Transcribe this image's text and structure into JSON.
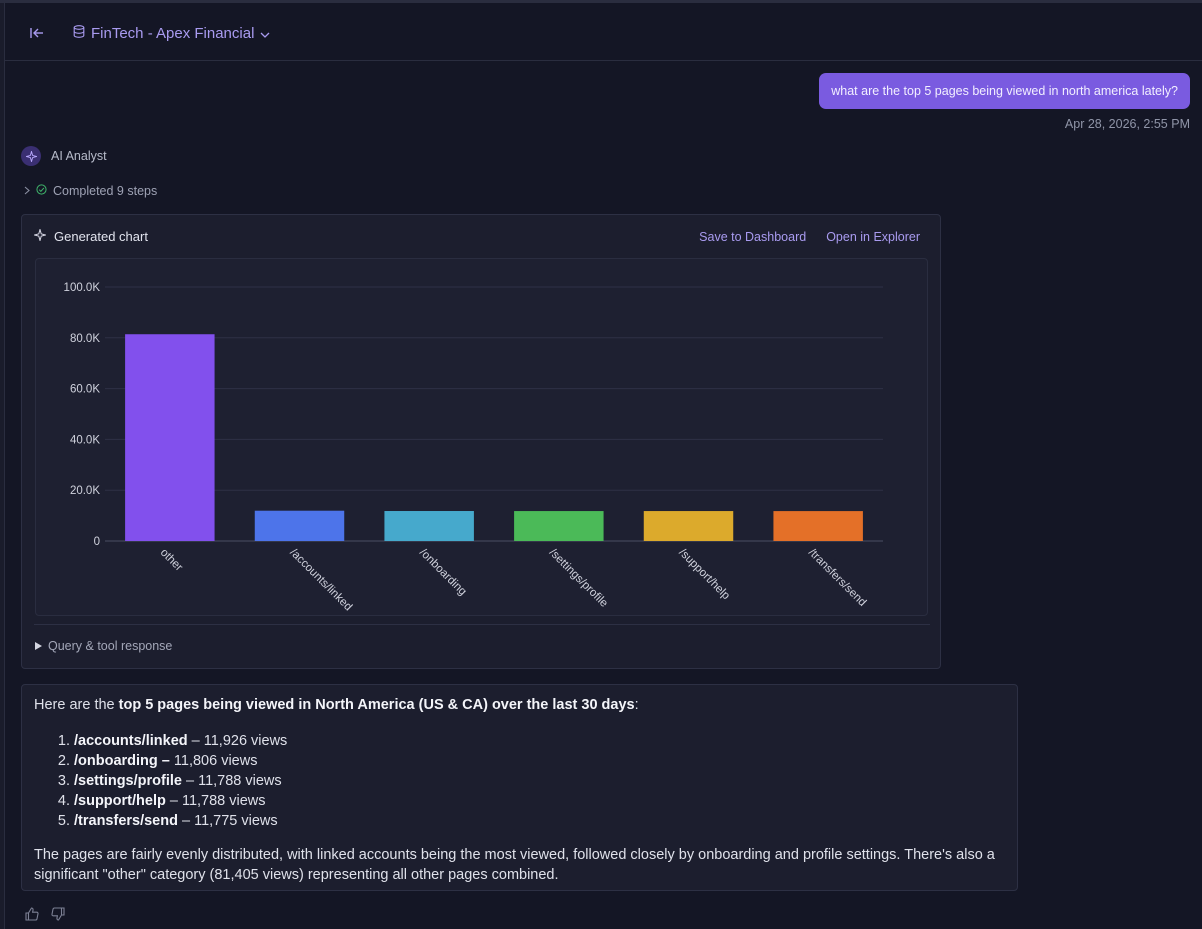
{
  "header": {
    "collapse_icon": "collapse-left-icon",
    "workspace_icon": "database-icon",
    "workspace_name": "FinTech - Apex Financial",
    "dropdown_icon": "chevron-down-icon"
  },
  "conversation": {
    "user_message": "what are the top 5 pages being viewed in north america lately?",
    "timestamp": "Apr 28, 2026, 2:55 PM",
    "assistant_name": "AI Analyst",
    "steps_label": "Completed 9 steps"
  },
  "chart_card": {
    "title": "Generated chart",
    "save_label": "Save to Dashboard",
    "explore_label": "Open in Explorer",
    "query_toggle_label": "Query & tool response"
  },
  "chart_data": {
    "type": "bar",
    "categories": [
      "other",
      "/accounts/linked",
      "/onboarding",
      "/settings/profile",
      "/support/help",
      "/transfers/send"
    ],
    "values": [
      81405,
      11926,
      11806,
      11788,
      11788,
      11775
    ],
    "colors": [
      "#8250ed",
      "#4d74ea",
      "#46a9cc",
      "#4bba58",
      "#dcaa2c",
      "#e47028"
    ],
    "yticks": [
      "0",
      "20.0K",
      "40.0K",
      "60.0K",
      "80.0K",
      "100.0K"
    ],
    "ylim": [
      0,
      100000
    ],
    "grid": true,
    "legend": "none"
  },
  "response": {
    "intro_prefix": "Here are the ",
    "intro_bold": "top 5 pages being viewed in North America (US & CA) over the last 30 days",
    "intro_suffix": ":",
    "items": [
      {
        "path": "/accounts/linked",
        "text": " – 11,926 views"
      },
      {
        "path": "/onboarding –",
        "text": " 11,806 views"
      },
      {
        "path": "/settings/profile",
        "text": " – 11,788 views"
      },
      {
        "path": "/support/help",
        "text": " – 11,788 views"
      },
      {
        "path": "/transfers/send",
        "text": " – 11,775 views"
      }
    ],
    "summary": "The pages are fairly evenly distributed, with linked accounts being the most viewed, followed closely by onboarding and profile settings. There's also a significant \"other\" category (81,405 views) representing all other pages combined."
  },
  "feedback": {
    "like_icon": "thumbs-up-icon",
    "dislike_icon": "thumbs-down-icon"
  }
}
